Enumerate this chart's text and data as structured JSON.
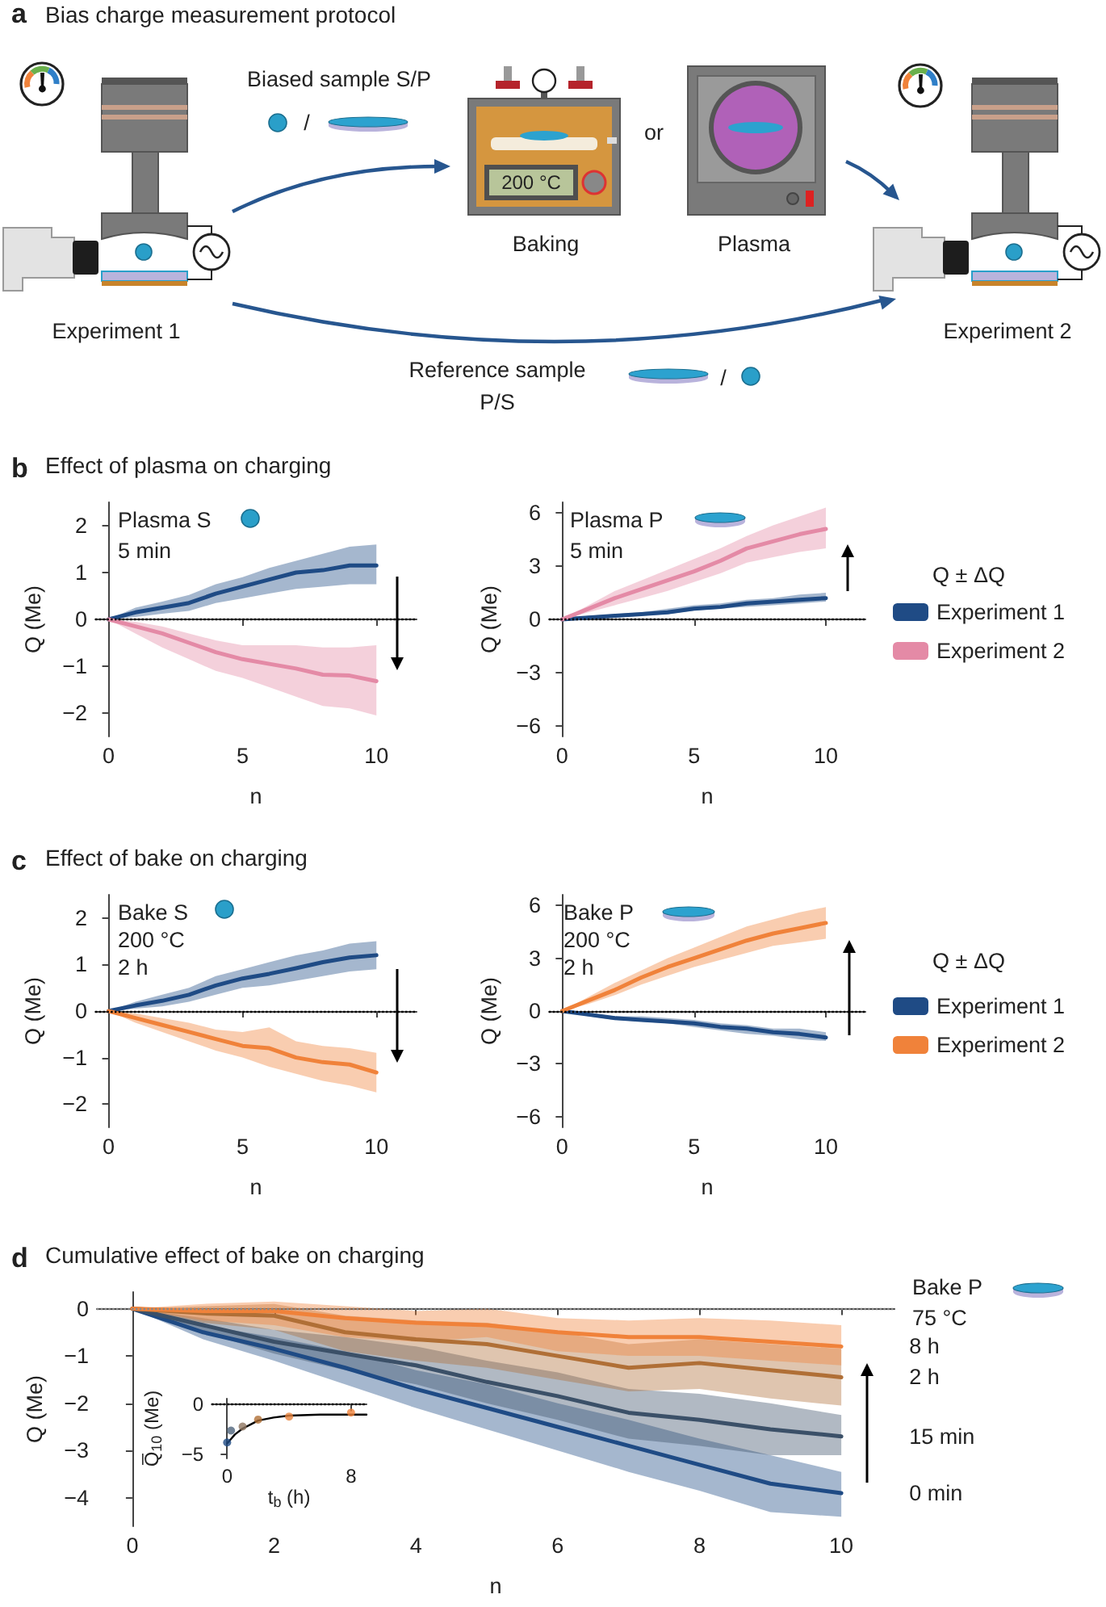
{
  "chart_data": [
    {
      "type": "other",
      "title": "Bias charge measurement protocol",
      "annotations": [
        "a",
        "Biased sample S/P",
        "/",
        "200 °C",
        "or",
        "Baking",
        "Plasma",
        "Experiment 1",
        "Experiment 2",
        "Reference sample",
        "P/S",
        "/"
      ]
    },
    {
      "type": "line",
      "title": "Effect of plasma on charging",
      "annotations": [
        "b",
        "Plasma S",
        "5 min"
      ],
      "xlabel": "n",
      "ylabel": "Q (Me)",
      "x": [
        0,
        1,
        2,
        3,
        4,
        5,
        6,
        7,
        8,
        9,
        10
      ],
      "xlim": [
        -0.5,
        11.5
      ],
      "xticks": [
        0,
        5,
        10
      ],
      "ylim": [
        -2.5,
        2.5
      ],
      "yticks": [
        -2,
        -1,
        0,
        1,
        2
      ],
      "ref_lines": [
        {
          "axis": "y",
          "value": 0,
          "color": "#000000",
          "line_style": "dotted"
        }
      ],
      "series": [
        {
          "color": "#1f4b85",
          "values": [
            0,
            0.15,
            0.25,
            0.35,
            0.55,
            0.7,
            0.85,
            1.0,
            1.05,
            1.15,
            1.15
          ],
          "lower": [
            0,
            0.05,
            0.12,
            0.18,
            0.35,
            0.45,
            0.55,
            0.65,
            0.7,
            0.75,
            0.75
          ],
          "upper": [
            0,
            0.25,
            0.38,
            0.52,
            0.75,
            0.9,
            1.1,
            1.25,
            1.4,
            1.55,
            1.6
          ]
        },
        {
          "color": "#e48aa6",
          "values": [
            0,
            -0.15,
            -0.3,
            -0.5,
            -0.7,
            -0.85,
            -0.95,
            -1.05,
            -1.18,
            -1.2,
            -1.32
          ],
          "lower": [
            0,
            -0.3,
            -0.6,
            -0.85,
            -1.1,
            -1.25,
            -1.45,
            -1.65,
            -1.85,
            -1.9,
            -2.05
          ],
          "upper": [
            0,
            -0.05,
            -0.15,
            -0.3,
            -0.45,
            -0.55,
            -0.55,
            -0.55,
            -0.6,
            -0.6,
            -0.55
          ]
        }
      ]
    },
    {
      "type": "line",
      "annotations": [
        "Plasma P",
        "5 min"
      ],
      "xlabel": "n",
      "ylabel": "Q (Me)",
      "legend": "right",
      "legend_title": "Q ± ΔQ",
      "x": [
        0,
        1,
        2,
        3,
        4,
        5,
        6,
        7,
        8,
        9,
        10
      ],
      "xlim": [
        -0.5,
        11.5
      ],
      "xticks": [
        0,
        5,
        10
      ],
      "ylim": [
        -6.6,
        6.6
      ],
      "yticks": [
        -6,
        -3,
        0,
        3,
        6
      ],
      "ref_lines": [
        {
          "axis": "y",
          "value": 0,
          "color": "#000000",
          "line_style": "dotted"
        }
      ],
      "series": [
        {
          "name": "Experiment 1",
          "color": "#1f4b85",
          "values": [
            0,
            0.1,
            0.2,
            0.3,
            0.4,
            0.6,
            0.7,
            0.9,
            1.0,
            1.1,
            1.2
          ],
          "lower": [
            0,
            0.0,
            0.1,
            0.2,
            0.3,
            0.5,
            0.6,
            0.7,
            0.8,
            0.9,
            1.0
          ],
          "upper": [
            0,
            0.2,
            0.3,
            0.4,
            0.6,
            0.8,
            0.9,
            1.1,
            1.2,
            1.4,
            1.5
          ]
        },
        {
          "name": "Experiment 2",
          "color": "#e48aa6",
          "values": [
            0,
            0.6,
            1.2,
            1.7,
            2.2,
            2.7,
            3.3,
            4.0,
            4.4,
            4.8,
            5.1
          ],
          "lower": [
            0,
            0.4,
            0.8,
            1.2,
            1.6,
            2.1,
            2.6,
            3.2,
            3.5,
            3.8,
            4.0
          ],
          "upper": [
            0,
            0.8,
            1.6,
            2.2,
            2.8,
            3.4,
            4.0,
            4.7,
            5.3,
            5.8,
            6.3
          ]
        }
      ]
    },
    {
      "type": "line",
      "title": "Effect of bake on charging",
      "annotations": [
        "c",
        "Bake S",
        "200 °C",
        "2 h"
      ],
      "xlabel": "n",
      "ylabel": "Q (Me)",
      "x": [
        0,
        1,
        2,
        3,
        4,
        5,
        6,
        7,
        8,
        9,
        10
      ],
      "xlim": [
        -0.5,
        11.5
      ],
      "xticks": [
        0,
        5,
        10
      ],
      "ylim": [
        -2.5,
        2.5
      ],
      "yticks": [
        -2,
        -1,
        0,
        1,
        2
      ],
      "ref_lines": [
        {
          "axis": "y",
          "value": 0,
          "color": "#000000",
          "line_style": "dotted"
        }
      ],
      "series": [
        {
          "color": "#1f4b85",
          "values": [
            0,
            0.12,
            0.22,
            0.35,
            0.55,
            0.7,
            0.8,
            0.92,
            1.05,
            1.15,
            1.2
          ],
          "lower": [
            0,
            0.05,
            0.1,
            0.2,
            0.35,
            0.5,
            0.55,
            0.65,
            0.75,
            0.85,
            0.9
          ],
          "upper": [
            0,
            0.2,
            0.35,
            0.5,
            0.75,
            0.9,
            1.05,
            1.2,
            1.3,
            1.45,
            1.5
          ]
        },
        {
          "color": "#f0823a",
          "values": [
            0,
            -0.15,
            -0.3,
            -0.45,
            -0.6,
            -0.75,
            -0.8,
            -1.0,
            -1.1,
            -1.15,
            -1.32
          ],
          "lower": [
            0,
            -0.25,
            -0.45,
            -0.65,
            -0.85,
            -1.0,
            -1.2,
            -1.35,
            -1.5,
            -1.6,
            -1.75
          ],
          "upper": [
            0,
            -0.05,
            -0.15,
            -0.25,
            -0.4,
            -0.45,
            -0.35,
            -0.65,
            -0.75,
            -0.8,
            -0.9
          ]
        }
      ]
    },
    {
      "type": "line",
      "annotations": [
        "Bake P",
        "200 °C",
        "2 h"
      ],
      "xlabel": "n",
      "ylabel": "Q (Me)",
      "legend": "right",
      "legend_title": "Q ± ΔQ",
      "x": [
        0,
        1,
        2,
        3,
        4,
        5,
        6,
        7,
        8,
        9,
        10
      ],
      "xlim": [
        -0.5,
        11.5
      ],
      "xticks": [
        0,
        5,
        10
      ],
      "ylim": [
        -6.6,
        6.6
      ],
      "yticks": [
        -6,
        -3,
        0,
        3,
        6
      ],
      "ref_lines": [
        {
          "axis": "y",
          "value": 0,
          "color": "#000000",
          "line_style": "dotted"
        }
      ],
      "series": [
        {
          "name": "Experiment 1",
          "color": "#1f4b85",
          "values": [
            0,
            -0.2,
            -0.4,
            -0.5,
            -0.6,
            -0.7,
            -0.9,
            -1.0,
            -1.2,
            -1.3,
            -1.5
          ],
          "lower": [
            0,
            -0.3,
            -0.5,
            -0.6,
            -0.7,
            -0.9,
            -1.1,
            -1.3,
            -1.4,
            -1.6,
            -1.7
          ],
          "upper": [
            0,
            -0.1,
            -0.3,
            -0.3,
            -0.4,
            -0.5,
            -0.7,
            -0.8,
            -1.0,
            -1.0,
            -1.2
          ]
        },
        {
          "name": "Experiment 2",
          "color": "#f0823a",
          "values": [
            0,
            0.6,
            1.2,
            1.9,
            2.5,
            3.0,
            3.5,
            4.0,
            4.4,
            4.7,
            5.0
          ],
          "lower": [
            0,
            0.4,
            0.9,
            1.5,
            2.0,
            2.5,
            2.9,
            3.3,
            3.7,
            3.9,
            4.1
          ],
          "upper": [
            0,
            0.8,
            1.6,
            2.3,
            3.0,
            3.6,
            4.2,
            4.8,
            5.2,
            5.6,
            5.9
          ]
        }
      ]
    },
    {
      "type": "line",
      "title": "Cumulative effect of bake on charging",
      "annotations": [
        "d",
        "Bake P",
        "75 °C"
      ],
      "xlabel": "n",
      "ylabel": "Q (Me)",
      "x": [
        0,
        1,
        2,
        3,
        4,
        5,
        6,
        7,
        8,
        9,
        10
      ],
      "xlim": [
        -0.5,
        10.75
      ],
      "xticks": [
        0,
        2,
        4,
        6,
        8,
        10
      ],
      "ylim": [
        -4.6,
        0.35
      ],
      "yticks": [
        -4,
        -3,
        -2,
        -1,
        0
      ],
      "ref_lines": [
        {
          "axis": "y",
          "value": 0,
          "color": "#888888",
          "line_style": "dotted"
        }
      ],
      "series": [
        {
          "name": "0 min",
          "color": "#1f4b85",
          "values": [
            0,
            -0.5,
            -0.85,
            -1.25,
            -1.7,
            -2.1,
            -2.5,
            -2.9,
            -3.3,
            -3.7,
            -3.9
          ],
          "lower": [
            0,
            -0.65,
            -1.1,
            -1.6,
            -2.1,
            -2.55,
            -3.0,
            -3.45,
            -3.85,
            -4.3,
            -4.4
          ],
          "upper": [
            0,
            -0.35,
            -0.6,
            -0.9,
            -1.3,
            -1.6,
            -2.0,
            -2.35,
            -2.75,
            -3.1,
            -3.45
          ]
        },
        {
          "name": "15 min",
          "color": "#3b5068",
          "values": [
            0,
            -0.35,
            -0.7,
            -0.95,
            -1.2,
            -1.55,
            -1.85,
            -2.2,
            -2.35,
            -2.55,
            -2.7
          ],
          "lower": [
            0,
            -0.5,
            -0.95,
            -1.3,
            -1.6,
            -2.0,
            -2.35,
            -2.75,
            -2.9,
            -3.1,
            -3.1
          ],
          "upper": [
            0,
            -0.2,
            -0.45,
            -0.6,
            -0.8,
            -1.1,
            -1.35,
            -1.7,
            -1.8,
            -2.0,
            -2.25
          ]
        },
        {
          "name": "2 h",
          "color": "#b06f36",
          "values": [
            0,
            -0.1,
            -0.15,
            -0.5,
            -0.65,
            -0.75,
            -1.0,
            -1.25,
            -1.15,
            -1.3,
            -1.45
          ],
          "lower": [
            0,
            -0.3,
            -0.45,
            -0.9,
            -1.1,
            -1.25,
            -1.5,
            -1.75,
            -1.7,
            -1.9,
            -2.05
          ],
          "upper": [
            0,
            0.05,
            0.1,
            -0.15,
            -0.25,
            -0.3,
            -0.5,
            -0.75,
            -0.65,
            -0.75,
            -0.85
          ]
        },
        {
          "name": "8 h",
          "color": "#f0823a",
          "values": [
            0,
            -0.05,
            -0.05,
            -0.2,
            -0.3,
            -0.35,
            -0.5,
            -0.6,
            -0.6,
            -0.7,
            -0.8
          ],
          "lower": [
            0,
            -0.25,
            -0.35,
            -0.6,
            -0.7,
            -0.6,
            -0.9,
            -1.0,
            -1.0,
            -1.1,
            -1.2
          ],
          "upper": [
            0,
            0.1,
            0.15,
            0.05,
            -0.05,
            0.0,
            -0.2,
            -0.25,
            -0.2,
            -0.25,
            -0.35
          ]
        }
      ]
    },
    {
      "type": "scatter",
      "xlabel": "t$_{b}$ (h)",
      "ylabel": "Q̅$_{10}$ (Me)",
      "xlim": [
        -1,
        9
      ],
      "xticks": [
        0,
        8
      ],
      "ylim": [
        -5.4,
        0.6
      ],
      "yticks": [
        -5,
        0
      ],
      "ref_lines": [
        {
          "axis": "y",
          "value": 0,
          "color": "#000000",
          "line_style": "dotted"
        }
      ],
      "series": [
        {
          "type": "line",
          "color": "#000000",
          "x": [
            0,
            0.5,
            1,
            1.5,
            2,
            3,
            4,
            6,
            9
          ],
          "values": [
            -3.9,
            -3.0,
            -2.4,
            -2.0,
            -1.6,
            -1.3,
            -1.1,
            -1.0,
            -1.0
          ]
        },
        {
          "type": "scatter",
          "marker": "circle",
          "x": [
            0,
            0.25,
            1,
            2,
            4,
            8
          ],
          "values": [
            -3.8,
            -2.6,
            -2.2,
            -1.5,
            -1.2,
            -0.8
          ],
          "colors": [
            "#1f4b85",
            "#4f647c",
            "#8f7660",
            "#b06f36",
            "#e8843e",
            "#f0823a"
          ]
        }
      ]
    }
  ]
}
